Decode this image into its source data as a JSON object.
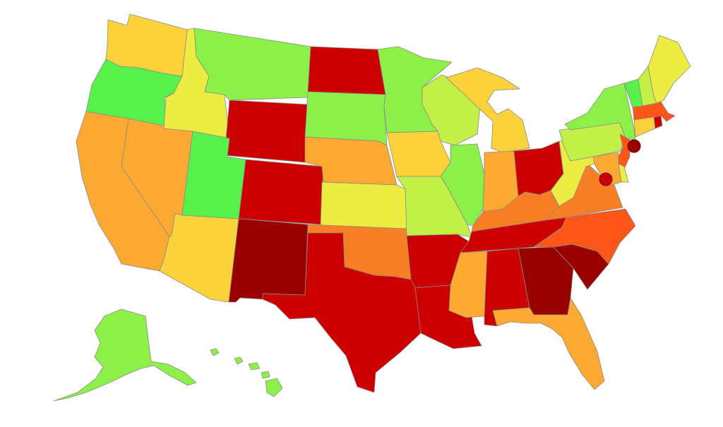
{
  "map": {
    "palette": {
      "dark_red": "#990000",
      "red": "#cc0000",
      "red_orange": "#ff5518",
      "orange": "#f97f24",
      "light_orange": "#fca932",
      "amber": "#fcd23a",
      "yellow": "#ecec42",
      "yellow_green": "#c2f047",
      "green": "#8cf048",
      "bright_green": "#58f04a"
    },
    "states": [
      {
        "code": "WA",
        "level": "amber"
      },
      {
        "code": "OR",
        "level": "bright_green"
      },
      {
        "code": "CA",
        "level": "light_orange"
      },
      {
        "code": "NV",
        "level": "light_orange"
      },
      {
        "code": "ID",
        "level": "yellow"
      },
      {
        "code": "MT",
        "level": "green"
      },
      {
        "code": "WY",
        "level": "red"
      },
      {
        "code": "UT",
        "level": "bright_green"
      },
      {
        "code": "AZ",
        "level": "amber"
      },
      {
        "code": "CO",
        "level": "red"
      },
      {
        "code": "NM",
        "level": "dark_red"
      },
      {
        "code": "ND",
        "level": "red"
      },
      {
        "code": "SD",
        "level": "green"
      },
      {
        "code": "NE",
        "level": "light_orange"
      },
      {
        "code": "KS",
        "level": "yellow"
      },
      {
        "code": "OK",
        "level": "orange"
      },
      {
        "code": "TX",
        "level": "red"
      },
      {
        "code": "MN",
        "level": "green"
      },
      {
        "code": "IA",
        "level": "amber"
      },
      {
        "code": "MO",
        "level": "yellow_green"
      },
      {
        "code": "AR",
        "level": "red"
      },
      {
        "code": "LA",
        "level": "red"
      },
      {
        "code": "WI",
        "level": "yellow_green"
      },
      {
        "code": "IL",
        "level": "green"
      },
      {
        "code": "MI",
        "level": "amber"
      },
      {
        "code": "IN",
        "level": "light_orange"
      },
      {
        "code": "OH",
        "level": "red"
      },
      {
        "code": "KY",
        "level": "orange"
      },
      {
        "code": "TN",
        "level": "red"
      },
      {
        "code": "MS",
        "level": "light_orange"
      },
      {
        "code": "AL",
        "level": "red"
      },
      {
        "code": "GA",
        "level": "dark_red"
      },
      {
        "code": "FL",
        "level": "light_orange"
      },
      {
        "code": "SC",
        "level": "dark_red"
      },
      {
        "code": "NC",
        "level": "red_orange"
      },
      {
        "code": "VA",
        "level": "orange"
      },
      {
        "code": "WV",
        "level": "yellow"
      },
      {
        "code": "PA",
        "level": "yellow_green"
      },
      {
        "code": "NY",
        "level": "green"
      },
      {
        "code": "NJ",
        "level": "red_orange"
      },
      {
        "code": "DE",
        "level": "yellow"
      },
      {
        "code": "MD",
        "level": "light_orange"
      },
      {
        "code": "CT",
        "level": "amber"
      },
      {
        "code": "RI",
        "level": "red"
      },
      {
        "code": "MA",
        "level": "red_orange"
      },
      {
        "code": "VT",
        "level": "bright_green"
      },
      {
        "code": "NH",
        "level": "yellow_green"
      },
      {
        "code": "ME",
        "level": "yellow"
      },
      {
        "code": "AK",
        "level": "green"
      },
      {
        "code": "HI",
        "level": "green"
      }
    ],
    "markers": [
      {
        "place": "NYC",
        "level": "dark_red"
      },
      {
        "place": "DC",
        "level": "red"
      }
    ]
  }
}
